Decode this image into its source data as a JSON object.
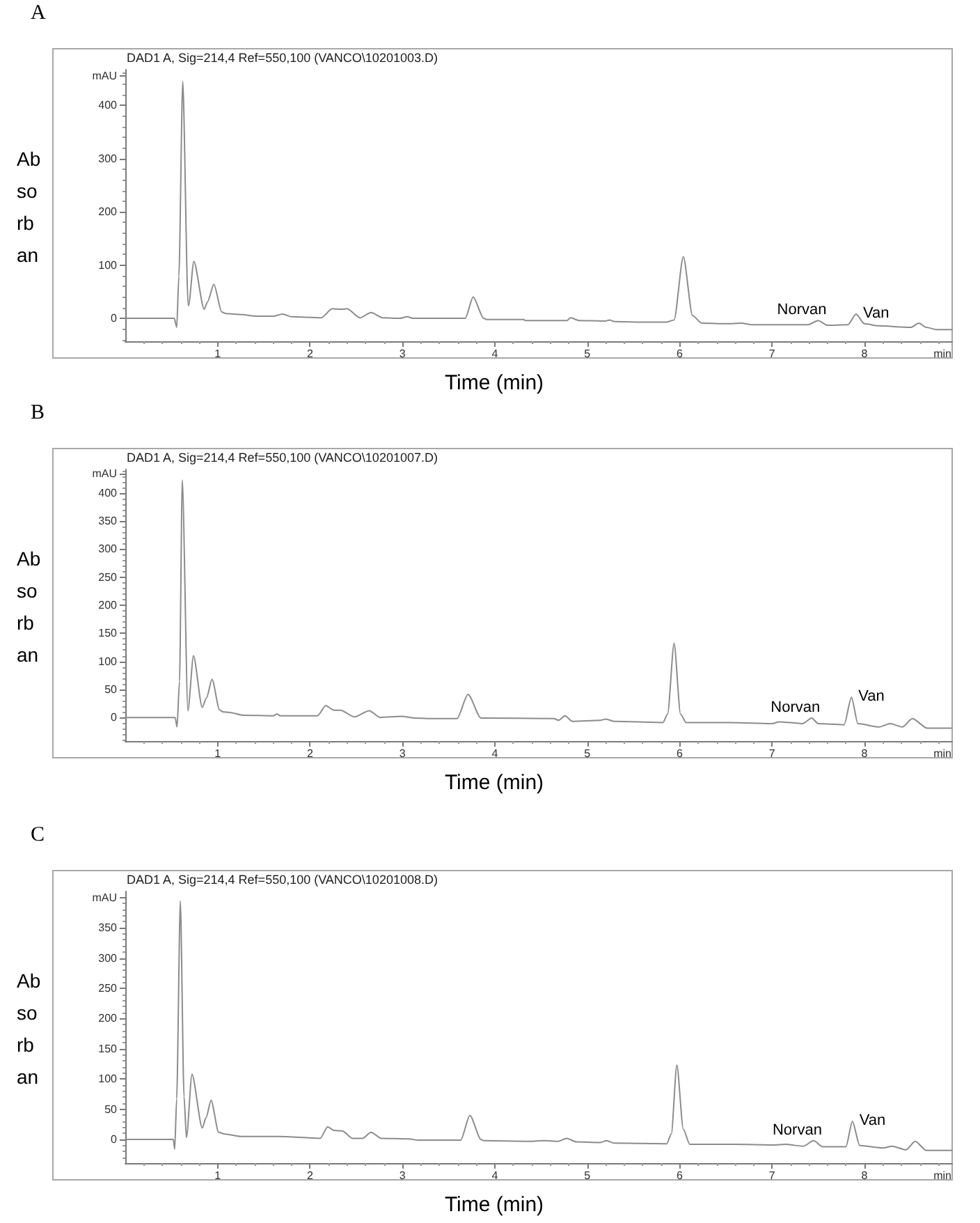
{
  "chart_data": [
    {
      "type": "line",
      "title": "A",
      "subtitle": "DAD1 A, Sig=214,4 Ref=550,100 (VANCO\\10201003.D)",
      "ylabel": "Ab\nso\nrb\nan",
      "xlabel": "Time (min)",
      "color": "#8c8c8c",
      "annotations": [
        {
          "text": "Norvan",
          "x": 7.5,
          "y": -4
        },
        {
          "text": "Van",
          "x": 7.91,
          "y": 8
        },
        "min"
      ],
      "x": [
        0,
        0.53,
        0.557,
        0.58,
        0.622,
        0.68,
        0.685,
        0.742,
        0.854,
        0.89,
        0.959,
        1.044,
        1.09,
        1.27,
        1.42,
        1.6,
        1.7,
        1.8,
        2.12,
        2.24,
        2.34,
        2.4,
        2.54,
        2.66,
        2.79,
        2.97,
        3.05,
        3.12,
        3.68,
        3.765,
        3.88,
        3.91,
        4.31,
        4.33,
        4.78,
        4.82,
        4.91,
        5.2,
        5.24,
        5.3,
        5.54,
        5.86,
        5.94,
        6.04,
        6.14,
        6.24,
        6.52,
        6.67,
        6.79,
        7.39,
        7.5,
        7.6,
        7.82,
        7.91,
        8.0,
        8.15,
        8.5,
        8.59,
        8.67,
        8.78,
        8.95
      ],
      "values": [
        0,
        0,
        -17,
        79,
        445,
        27,
        24,
        107,
        17,
        31,
        64,
        12,
        9,
        7,
        4,
        4,
        8,
        3,
        1,
        18,
        17,
        18,
        1,
        11,
        1,
        0,
        3,
        0,
        0,
        40,
        0,
        -2,
        -2,
        -4,
        -4,
        1,
        -4,
        -5,
        -3,
        -6,
        -7,
        -7,
        -3,
        116,
        5,
        -9,
        -10,
        -9,
        -12,
        -12,
        -4,
        -13,
        -12,
        8,
        -10,
        -14,
        -17,
        -9,
        -17,
        -21,
        -21
      ],
      "xlim": [
        0,
        8.95
      ],
      "xticks": [
        1,
        2,
        3,
        4,
        5,
        6,
        7,
        8
      ],
      "ylim": [
        -43,
        467
      ],
      "yticks": [
        0,
        100,
        200,
        300,
        400,
        {
          "value": 455,
          "label": "mAU"
        }
      ]
    },
    {
      "type": "line",
      "title": "B",
      "subtitle": "DAD1 A, Sig=214,4 Ref=550,100 (VANCO\\10201007.D)",
      "ylabel": "Ab\nso\nrb\nan",
      "xlabel": "Time (min)",
      "color": "#8c8c8c",
      "annotations": [
        {
          "text": "Norvan",
          "x": 7.43,
          "y": -1
        },
        {
          "text": "Van",
          "x": 7.86,
          "y": 36
        },
        "min"
      ],
      "x": [
        0,
        0.54,
        0.56,
        0.587,
        0.617,
        0.678,
        0.738,
        0.833,
        0.879,
        0.939,
        1.02,
        1.054,
        1.13,
        1.28,
        1.6,
        1.64,
        1.68,
        2.08,
        2.17,
        2.26,
        2.33,
        2.48,
        2.64,
        2.76,
        2.99,
        3.14,
        3.29,
        3.59,
        3.71,
        3.85,
        4.64,
        4.69,
        4.76,
        4.84,
        5.14,
        5.2,
        5.3,
        5.82,
        5.87,
        5.94,
        6.01,
        6.07,
        6.55,
        7.0,
        7.08,
        7.2,
        7.33,
        7.43,
        7.5,
        7.78,
        7.86,
        7.93,
        8.16,
        8.28,
        8.41,
        8.52,
        8.68,
        8.95
      ],
      "values": [
        0,
        0,
        -17,
        64,
        423,
        12,
        110,
        18,
        35,
        68,
        14,
        10,
        9,
        4,
        3,
        6,
        3,
        3,
        21,
        13,
        13,
        1,
        12,
        0,
        2,
        -1,
        -2,
        -2,
        41,
        -1,
        -2,
        -5,
        3,
        -7,
        -5,
        -3,
        -7,
        -9,
        6,
        132,
        6,
        -9,
        -9,
        -11,
        -8,
        -9,
        -11,
        -1,
        -11,
        -13,
        36,
        -11,
        -17,
        -11,
        -17,
        -2,
        -19,
        -19
      ],
      "xlim": [
        0,
        8.95
      ],
      "xticks": [
        1,
        2,
        3,
        4,
        5,
        6,
        7,
        8
      ],
      "ylim": [
        -42,
        442
      ],
      "yticks": [
        0,
        50,
        100,
        150,
        200,
        250,
        300,
        350,
        400,
        {
          "value": 435,
          "label": "mAU"
        }
      ]
    },
    {
      "type": "line",
      "title": "C",
      "subtitle": "DAD1 A, Sig=214,4 Ref=550,100 (VANCO\\10201008.D)",
      "ylabel": "Ab\nso\nrb\nan",
      "xlabel": "Time (min)",
      "color": "#8c8c8c",
      "annotations": [
        {
          "text": "Norvan",
          "x": 7.45,
          "y": -2
        },
        {
          "text": "Van",
          "x": 7.87,
          "y": 30
        },
        "min"
      ],
      "x": [
        0,
        0.52,
        0.535,
        0.556,
        0.596,
        0.636,
        0.662,
        0.722,
        0.833,
        0.874,
        0.929,
        1.01,
        1.076,
        1.25,
        1.66,
        2.11,
        2.19,
        2.26,
        2.35,
        2.46,
        2.57,
        2.66,
        2.77,
        3.07,
        3.17,
        3.63,
        3.73,
        3.85,
        3.88,
        4.38,
        4.53,
        4.68,
        4.78,
        4.88,
        5.14,
        5.21,
        5.29,
        5.86,
        5.91,
        5.97,
        6.04,
        6.11,
        6.59,
        7.04,
        7.14,
        7.34,
        7.45,
        7.55,
        7.8,
        7.87,
        7.95,
        8.2,
        8.3,
        8.45,
        8.55,
        8.67,
        8.95
      ],
      "values": [
        0,
        0,
        -16,
        67,
        394,
        71,
        3,
        108,
        19,
        36,
        65,
        12,
        9,
        5,
        5,
        2,
        21,
        15,
        14,
        2,
        2,
        12,
        2,
        1,
        -1,
        -1,
        40,
        0,
        -2,
        -3,
        -2,
        -3,
        2,
        -4,
        -5,
        -2,
        -6,
        -7,
        9,
        123,
        17,
        -8,
        -8,
        -9,
        -8,
        -11,
        -2,
        -12,
        -12,
        30,
        -10,
        -14,
        -11,
        -17,
        -3,
        -18,
        -18
      ],
      "xlim": [
        0,
        8.95
      ],
      "xticks": [
        1,
        2,
        3,
        4,
        5,
        6,
        7,
        8
      ],
      "ylim": [
        -39,
        410
      ],
      "yticks": [
        0,
        50,
        100,
        150,
        200,
        250,
        300,
        350,
        {
          "value": 400,
          "label": "mAU"
        }
      ]
    }
  ]
}
